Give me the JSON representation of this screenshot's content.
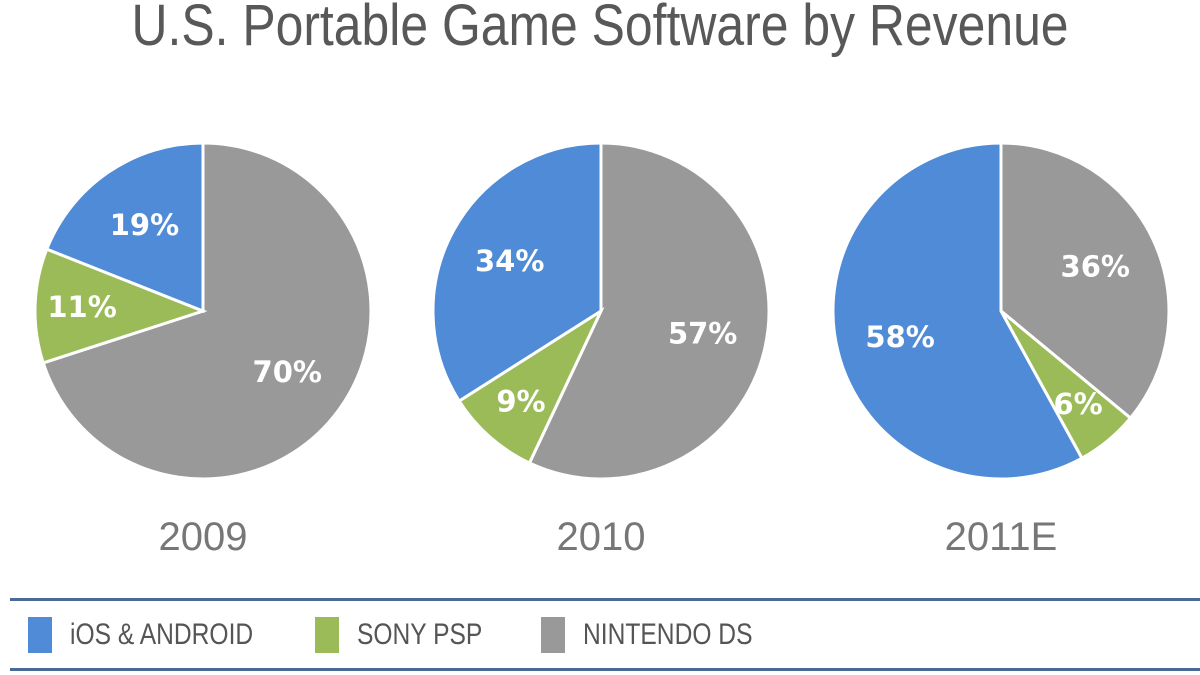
{
  "chart_data": {
    "type": "pie",
    "title": "U.S. Portable Game Software by Revenue",
    "colors": {
      "iOS & ANDROID": "#4f8bd6",
      "SONY PSP": "#9bbb59",
      "NINTENDO DS": "#999999"
    },
    "legend": {
      "placement": "bottom",
      "entries": [
        "iOS & ANDROID",
        "SONY PSP",
        "NINTENDO DS"
      ]
    },
    "charts": [
      {
        "label": "2009",
        "slices": [
          {
            "name": "NINTENDO DS",
            "value": 70
          },
          {
            "name": "SONY PSP",
            "value": 11
          },
          {
            "name": "iOS & ANDROID",
            "value": 19
          }
        ]
      },
      {
        "label": "2010",
        "slices": [
          {
            "name": "NINTENDO DS",
            "value": 57
          },
          {
            "name": "SONY PSP",
            "value": 9
          },
          {
            "name": "iOS & ANDROID",
            "value": 34
          }
        ]
      },
      {
        "label": "2011E",
        "slices": [
          {
            "name": "NINTENDO DS",
            "value": 36
          },
          {
            "name": "SONY PSP",
            "value": 6
          },
          {
            "name": "iOS & ANDROID",
            "value": 58
          }
        ]
      }
    ]
  }
}
